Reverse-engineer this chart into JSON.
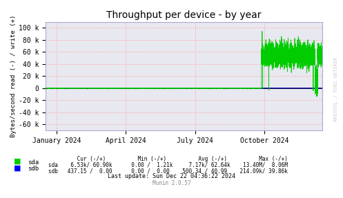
{
  "title": "Throughput per device - by year",
  "ylabel": "Bytes/second read (-) / write (+)",
  "bg_color": "#ffffff",
  "plot_bg_color": "#e8e8f0",
  "grid_color": "#ff9999",
  "grid_linestyle": ":",
  "ylim": [
    -70000,
    110000
  ],
  "yticks": [
    -60000,
    -40000,
    -20000,
    0,
    20000,
    40000,
    60000,
    80000,
    100000
  ],
  "ytick_labels": [
    "-60 k",
    "-40 k",
    "-20 k",
    "0",
    "20 k",
    "40 k",
    "60 k",
    "80 k",
    "100 k"
  ],
  "xtick_labels": [
    "January 2024",
    "April 2024",
    "July 2024",
    "October 2024"
  ],
  "sda_color": "#00cc00",
  "sdb_color": "#0000ff",
  "zero_line_color": "#000000",
  "watermark": "RRDTOOL / TOBI OETIKER",
  "munin_version": "Munin 2.0.57",
  "legend": [
    {
      "label": "sda",
      "color": "#00cc00"
    },
    {
      "label": "sdb",
      "color": "#0000ff"
    }
  ],
  "table_text": "        Cur (-/+)          Min (-/+)          Avg (-/+)           Max (-/+)\nsda   6.53k/ 60.90k      0.00 /  1.21k     7.17k/ 62.64k    13.40M/  8.06M\nsdb  437.15 /  0.00      0.00 /  0.00    500.34 / 40.99    214.09k/ 39.86k",
  "last_update": "Last update: Sun Dec 22 04:36:22 2024"
}
